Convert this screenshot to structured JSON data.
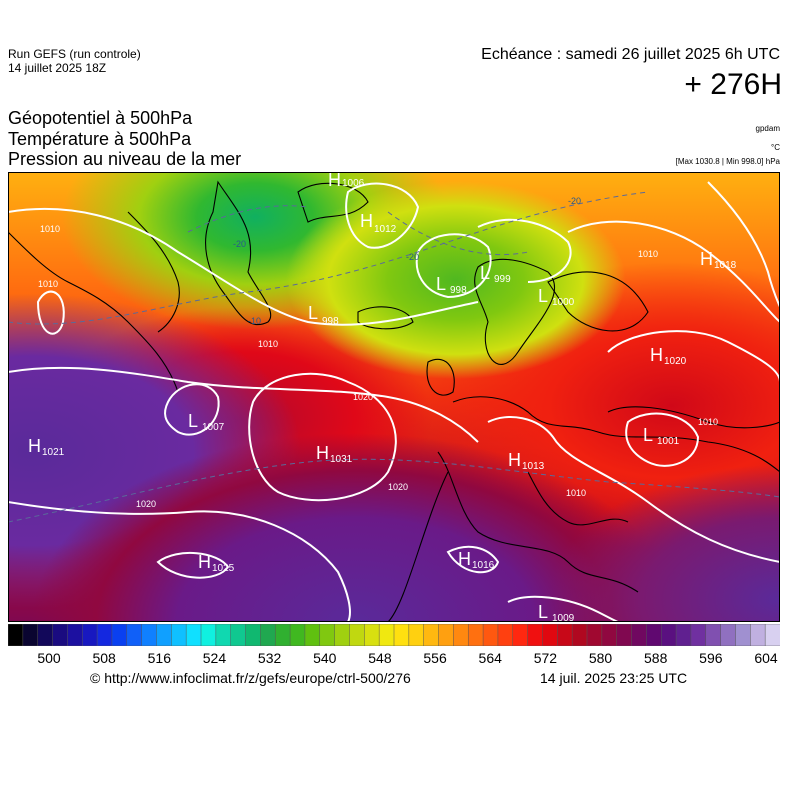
{
  "header": {
    "run_line1": "Run GEFS (run controle)",
    "run_line2": "14 juillet 2025 18Z",
    "echeance": "Echéance : samedi 26 juillet 2025 6h UTC",
    "lead": "+ 276H"
  },
  "titles": {
    "line1": "Géopotentiel à 500hPa",
    "line2": "Température à 500hPa",
    "line3": "Pression au niveau de la mer"
  },
  "units": {
    "gpdam": "gpdam",
    "celsius": "°C",
    "maxmin": "[Max 1030.8 | Min 998.0] hPa"
  },
  "colorbar": {
    "labels": [
      "500",
      "508",
      "516",
      "524",
      "532",
      "540",
      "548",
      "556",
      "564",
      "572",
      "580",
      "588",
      "596",
      "604"
    ],
    "colors": [
      "#000000",
      "#0a0530",
      "#12085a",
      "#1a0b80",
      "#1c10a0",
      "#1818c0",
      "#1428e0",
      "#0a40f0",
      "#1060f8",
      "#1080ff",
      "#10a0ff",
      "#10c0ff",
      "#10e0ff",
      "#10f0e0",
      "#10d8b0",
      "#10c890",
      "#10b870",
      "#20a850",
      "#30b030",
      "#40b820",
      "#60c010",
      "#80c810",
      "#a0d010",
      "#c0d810",
      "#d8e010",
      "#f0e810",
      "#ffe010",
      "#ffd010",
      "#ffb810",
      "#ffa010",
      "#ff8810",
      "#ff7010",
      "#ff5810",
      "#ff4010",
      "#ff2810",
      "#f01010",
      "#e00810",
      "#c80818",
      "#b00820",
      "#a00830",
      "#900840",
      "#800850",
      "#700860",
      "#600870",
      "#5a1080",
      "#602090",
      "#7030a0",
      "#8050b0",
      "#9070c0",
      "#a090d0",
      "#c0b0e0",
      "#d8d0f0"
    ]
  },
  "map": {
    "pressure_centers": [
      {
        "type": "H",
        "value": "1006"
      },
      {
        "type": "H",
        "value": "1012"
      },
      {
        "type": "L",
        "value": "998"
      },
      {
        "type": "L",
        "value": "999"
      },
      {
        "type": "L",
        "value": "998"
      },
      {
        "type": "L",
        "value": "1000"
      },
      {
        "type": "H",
        "value": "1018"
      },
      {
        "type": "H",
        "value": "1020"
      },
      {
        "type": "L",
        "value": "1007"
      },
      {
        "type": "H",
        "value": "1031"
      },
      {
        "type": "H",
        "value": "1021"
      },
      {
        "type": "H",
        "value": "1013"
      },
      {
        "type": "L",
        "value": "1001"
      },
      {
        "type": "H",
        "value": "1025"
      },
      {
        "type": "H",
        "value": "1016"
      },
      {
        "type": "L",
        "value": "1009"
      }
    ],
    "isobar_labels": [
      "1010",
      "1010",
      "1010",
      "1020",
      "1020",
      "1020",
      "1010",
      "1010",
      "1010"
    ],
    "temp_labels": [
      "-20",
      "-20",
      "-20",
      "-10"
    ]
  },
  "footer": {
    "source": "© http://www.infoclimat.fr/z/gefs/europe/ctrl-500/276",
    "generated": "14 juil. 2025 23:25 UTC"
  }
}
